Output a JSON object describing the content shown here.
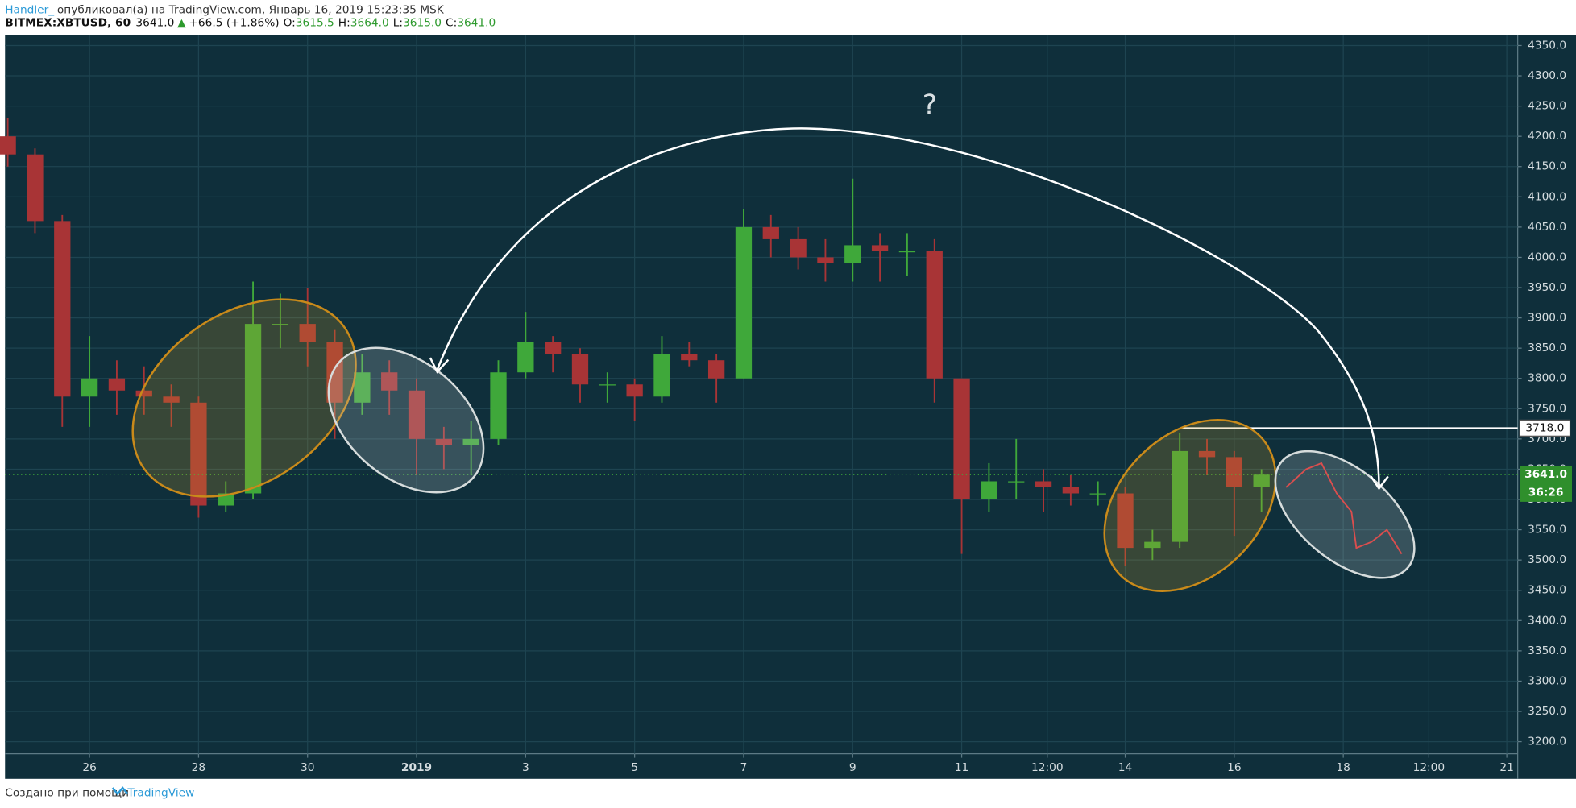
{
  "header": {
    "author": "Handler_",
    "published": "опубликовал(а) на TradingView.com, Январь 16, 2019 15:23:35 MSK",
    "symbol": "BITMEX:XBTUSD, 60",
    "last": "3641.0",
    "arrow": "▲",
    "change": "+66.5 (+1.86%)",
    "ohlc": [
      {
        "label": "O:",
        "value": "3615.5"
      },
      {
        "label": "H:",
        "value": "3664.0"
      },
      {
        "label": "L:",
        "value": "3615.0"
      },
      {
        "label": "C:",
        "value": "3641.0"
      }
    ]
  },
  "footer": {
    "text": "Создано при помощи",
    "brand": "TradingView"
  },
  "chart_data": {
    "type": "candlestick",
    "x": [
      -1.5,
      -1,
      -0.5,
      0,
      0.5,
      1,
      1.5,
      2,
      2.5,
      3,
      3.5,
      4,
      4.5,
      5,
      5.5,
      6,
      6.5,
      7,
      7.5,
      8,
      8.5,
      9,
      9.5,
      10,
      10.5,
      11,
      11.5,
      12,
      12.5,
      13,
      13.5,
      14,
      14.5,
      15,
      15.5,
      16,
      16.5,
      17,
      17.5,
      18,
      18.5,
      19,
      19.5,
      20,
      20.5,
      21,
      21.5
    ],
    "open": [
      4200,
      4170,
      4060,
      3770,
      3800,
      3780,
      3770,
      3760,
      3590,
      3610,
      3890,
      3890,
      3860,
      3760,
      3810,
      3780,
      3700,
      3690,
      3700,
      3810,
      3860,
      3840,
      3790,
      3790,
      3770,
      3840,
      3830,
      3800,
      4050,
      4030,
      4000,
      3990,
      4020,
      4010,
      4010,
      3800,
      3600,
      3630,
      3630,
      3620,
      3610,
      3610,
      3520,
      3530,
      3680,
      3670,
      3620
    ],
    "high": [
      4230,
      4180,
      4070,
      3870,
      3830,
      3820,
      3790,
      3770,
      3630,
      3960,
      3940,
      3950,
      3880,
      3840,
      3830,
      3800,
      3720,
      3730,
      3830,
      3910,
      3870,
      3850,
      3810,
      3800,
      3870,
      3860,
      3840,
      4080,
      4070,
      4050,
      4030,
      4130,
      4040,
      4040,
      4030,
      3800,
      3660,
      3700,
      3650,
      3640,
      3630,
      3620,
      3550,
      3710,
      3700,
      3680,
      3650
    ],
    "low": [
      4150,
      4040,
      3720,
      3720,
      3740,
      3740,
      3720,
      3570,
      3580,
      3600,
      3850,
      3820,
      3700,
      3740,
      3740,
      3640,
      3650,
      3640,
      3690,
      3800,
      3810,
      3760,
      3760,
      3730,
      3760,
      3820,
      3760,
      3800,
      4000,
      3980,
      3960,
      3960,
      3960,
      3970,
      3760,
      3510,
      3580,
      3600,
      3580,
      3590,
      3590,
      3490,
      3500,
      3520,
      3640,
      3540,
      3580
    ],
    "close": [
      4170,
      4060,
      3770,
      3800,
      3780,
      3770,
      3760,
      3590,
      3610,
      3890,
      3890,
      3860,
      3760,
      3810,
      3780,
      3700,
      3690,
      3700,
      3810,
      3860,
      3840,
      3790,
      3790,
      3770,
      3840,
      3830,
      3800,
      4050,
      4030,
      4000,
      3990,
      4020,
      4010,
      4010,
      3800,
      3600,
      3630,
      3630,
      3620,
      3610,
      3610,
      3520,
      3530,
      3680,
      3670,
      3620,
      3641
    ],
    "up_color": "#3fa83a",
    "down_color": "#a83436",
    "forecast": {
      "color": "#e02a2a",
      "x": [
        21.95,
        22.32,
        22.6,
        22.88,
        23.15,
        23.24,
        23.52,
        23.8,
        24.07
      ],
      "values": [
        3620,
        3650,
        3660,
        3610,
        3580,
        3520,
        3530,
        3550,
        3510
      ]
    },
    "xlim": [
      -1.55,
      26.2
    ],
    "ylim": [
      3180,
      4367
    ],
    "xticks": [
      {
        "value": 0,
        "label": "26"
      },
      {
        "value": 2,
        "label": "28"
      },
      {
        "value": 4,
        "label": "30"
      },
      {
        "value": 6,
        "label": "2019"
      },
      {
        "value": 8,
        "label": "3"
      },
      {
        "value": 10,
        "label": "5"
      },
      {
        "value": 12,
        "label": "7"
      },
      {
        "value": 14,
        "label": "9"
      },
      {
        "value": 16,
        "label": "11"
      },
      {
        "value": 17.57,
        "label": "12:00"
      },
      {
        "value": 19,
        "label": "14"
      },
      {
        "value": 21,
        "label": "16"
      },
      {
        "value": 23,
        "label": "18"
      },
      {
        "value": 24.57,
        "label": "12:00"
      },
      {
        "value": 26,
        "label": "21"
      }
    ],
    "yticks": [
      {
        "value": 3200,
        "label": "3200.0"
      },
      {
        "value": 3250,
        "label": "3250.0"
      },
      {
        "value": 3300,
        "label": "3300.0"
      },
      {
        "value": 3350,
        "label": "3350.0"
      },
      {
        "value": 3400,
        "label": "3400.0"
      },
      {
        "value": 3450,
        "label": "3450.0"
      },
      {
        "value": 3500,
        "label": "3500.0"
      },
      {
        "value": 3550,
        "label": "3550.0"
      },
      {
        "value": 3600,
        "label": "3600.0"
      },
      {
        "value": 3650,
        "label": "3650.0"
      },
      {
        "value": 3700,
        "label": "3700.0"
      },
      {
        "value": 3750,
        "label": "3750.0"
      },
      {
        "value": 3800,
        "label": "3800.0"
      },
      {
        "value": 3850,
        "label": "3850.0"
      },
      {
        "value": 3900,
        "label": "3900.0"
      },
      {
        "value": 3950,
        "label": "3950.0"
      },
      {
        "value": 4000,
        "label": "4000.0"
      },
      {
        "value": 4050,
        "label": "4050.0"
      },
      {
        "value": 4100,
        "label": "4100.0"
      },
      {
        "value": 4150,
        "label": "4150.0"
      },
      {
        "value": 4200,
        "label": "4200.0"
      },
      {
        "value": 4250,
        "label": "4250.0"
      },
      {
        "value": 4300,
        "label": "4300.0"
      },
      {
        "value": 4350,
        "label": "4350.0"
      }
    ],
    "grid": true,
    "level": {
      "value": 3718,
      "label": "3718.0"
    },
    "last_price": {
      "value": 3641,
      "label": "3641.0"
    },
    "countdown": "36:26",
    "annotation": "?"
  }
}
